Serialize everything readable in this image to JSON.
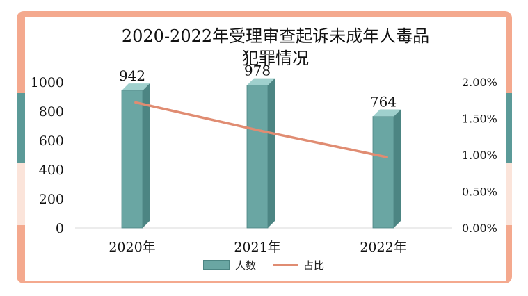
{
  "chart_data": {
    "type": "bar",
    "title": "2020-2022年受理审查起诉未成年人毒品犯罪情况",
    "categories": [
      "2020年",
      "2021年",
      "2022年"
    ],
    "series": [
      {
        "name": "人数",
        "type": "bar",
        "axis": "left",
        "values": [
          942,
          978,
          764
        ],
        "data_labels": [
          "942",
          "978",
          "764"
        ]
      },
      {
        "name": "占比",
        "type": "line",
        "axis": "right",
        "values": [
          1.72,
          1.33,
          0.97
        ]
      }
    ],
    "y_left": {
      "ticks": [
        "0",
        "200",
        "400",
        "600",
        "800",
        "1000"
      ],
      "ylim": [
        0,
        1000
      ]
    },
    "y_right": {
      "ticks": [
        "0.00%",
        "0.50%",
        "1.00%",
        "1.50%",
        "2.00%"
      ],
      "ylim": [
        0,
        2.0
      ]
    },
    "legend_position": "bottom",
    "colors": {
      "bar": "#6aa6a3",
      "bar_side": "#4c8583",
      "bar_top": "#9fd0cd",
      "line": "#e08c72"
    }
  }
}
